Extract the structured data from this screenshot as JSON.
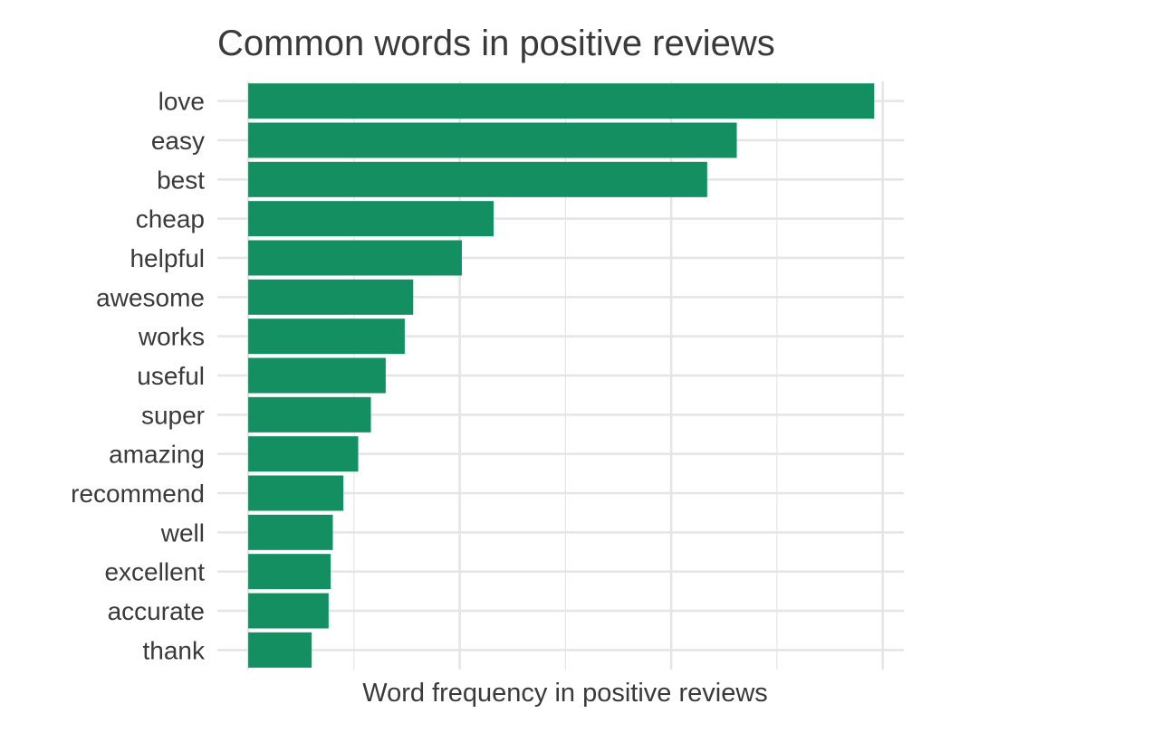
{
  "chart_data": {
    "type": "bar",
    "orientation": "horizontal",
    "title": "Common words in positive reviews",
    "xlabel": "Word frequency in positive reviews",
    "ylabel": "",
    "categories": [
      "love",
      "easy",
      "best",
      "cheap",
      "helpful",
      "awesome",
      "works",
      "useful",
      "super",
      "amazing",
      "recommend",
      "well",
      "excellent",
      "accurate",
      "thank"
    ],
    "values": [
      2.96,
      2.31,
      2.17,
      1.16,
      1.01,
      0.78,
      0.74,
      0.65,
      0.58,
      0.52,
      0.45,
      0.4,
      0.39,
      0.38,
      0.3
    ],
    "xlim": [
      -0.146,
      3.1
    ],
    "x_tick_labels_shown": false,
    "grid": true,
    "bar_color": "#138f61",
    "grid_color": "#e5e5e5",
    "text_color": "#3a3a3a"
  }
}
